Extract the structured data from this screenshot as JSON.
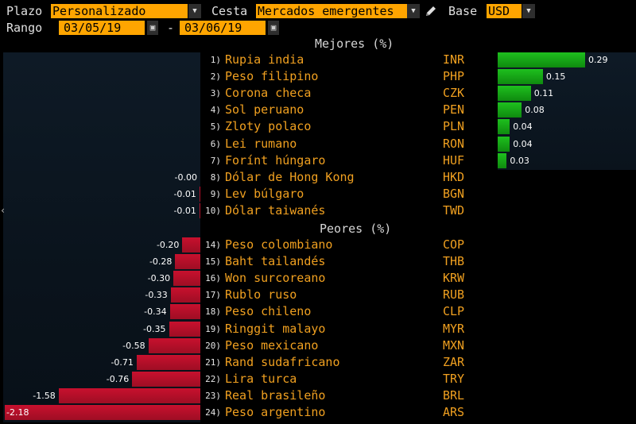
{
  "toolbar": {
    "plazo_label": "Plazo",
    "plazo_value": "Personalizado",
    "cesta_label": "Cesta",
    "cesta_value": "Mercados emergentes",
    "base_label": "Base",
    "base_value": "USD",
    "rango_label": "Rango",
    "date_start": "03/05/19",
    "date_sep": "-",
    "date_end": "03/06/19"
  },
  "sections": {
    "best_header": "Mejores (%)",
    "worst_header": "Peores (%)"
  },
  "colors": {
    "accent": "#ffa500",
    "text_orange": "#f0a020",
    "bar_green": "#1ec01e",
    "bar_red": "#c8102e"
  },
  "chart_data": {
    "type": "bar",
    "title": "",
    "best": [
      {
        "rank": "1)",
        "name": "Rupia india",
        "code": "INR",
        "value": 0.29,
        "label": "0.29"
      },
      {
        "rank": "2)",
        "name": "Peso filipino",
        "code": "PHP",
        "value": 0.15,
        "label": "0.15"
      },
      {
        "rank": "3)",
        "name": "Corona checa",
        "code": "CZK",
        "value": 0.11,
        "label": "0.11"
      },
      {
        "rank": "4)",
        "name": "Sol peruano",
        "code": "PEN",
        "value": 0.08,
        "label": "0.08"
      },
      {
        "rank": "5)",
        "name": "Zloty polaco",
        "code": "PLN",
        "value": 0.04,
        "label": "0.04"
      },
      {
        "rank": "6)",
        "name": "Lei rumano",
        "code": "RON",
        "value": 0.04,
        "label": "0.04"
      },
      {
        "rank": "7)",
        "name": "Forínt húngaro",
        "code": "HUF",
        "value": 0.03,
        "label": "0.03"
      },
      {
        "rank": "8)",
        "name": "Dólar de Hong Kong",
        "code": "HKD",
        "value": -0.0,
        "label": "-0.00"
      },
      {
        "rank": "9)",
        "name": "Lev búlgaro",
        "code": "BGN",
        "value": -0.01,
        "label": "-0.01"
      },
      {
        "rank": "10)",
        "name": "Dólar taiwanés",
        "code": "TWD",
        "value": -0.01,
        "label": "-0.01"
      }
    ],
    "worst": [
      {
        "rank": "14)",
        "name": "Peso colombiano",
        "code": "COP",
        "value": -0.2,
        "label": "-0.20"
      },
      {
        "rank": "15)",
        "name": "Baht tailandés",
        "code": "THB",
        "value": -0.28,
        "label": "-0.28"
      },
      {
        "rank": "16)",
        "name": "Won surcoreano",
        "code": "KRW",
        "value": -0.3,
        "label": "-0.30"
      },
      {
        "rank": "17)",
        "name": "Rublo ruso",
        "code": "RUB",
        "value": -0.33,
        "label": "-0.33"
      },
      {
        "rank": "18)",
        "name": "Peso chileno",
        "code": "CLP",
        "value": -0.34,
        "label": "-0.34"
      },
      {
        "rank": "19)",
        "name": "Ringgit malayo",
        "code": "MYR",
        "value": -0.35,
        "label": "-0.35"
      },
      {
        "rank": "20)",
        "name": "Peso mexicano",
        "code": "MXN",
        "value": -0.58,
        "label": "-0.58"
      },
      {
        "rank": "21)",
        "name": "Rand sudafricano",
        "code": "ZAR",
        "value": -0.71,
        "label": "-0.71"
      },
      {
        "rank": "22)",
        "name": "Lira turca",
        "code": "TRY",
        "value": -0.76,
        "label": "-0.76"
      },
      {
        "rank": "23)",
        "name": "Real brasileño",
        "code": "BRL",
        "value": -1.58,
        "label": "-1.58"
      },
      {
        "rank": "24)",
        "name": "Peso argentino",
        "code": "ARS",
        "value": -2.18,
        "label": "-2.18"
      }
    ]
  }
}
